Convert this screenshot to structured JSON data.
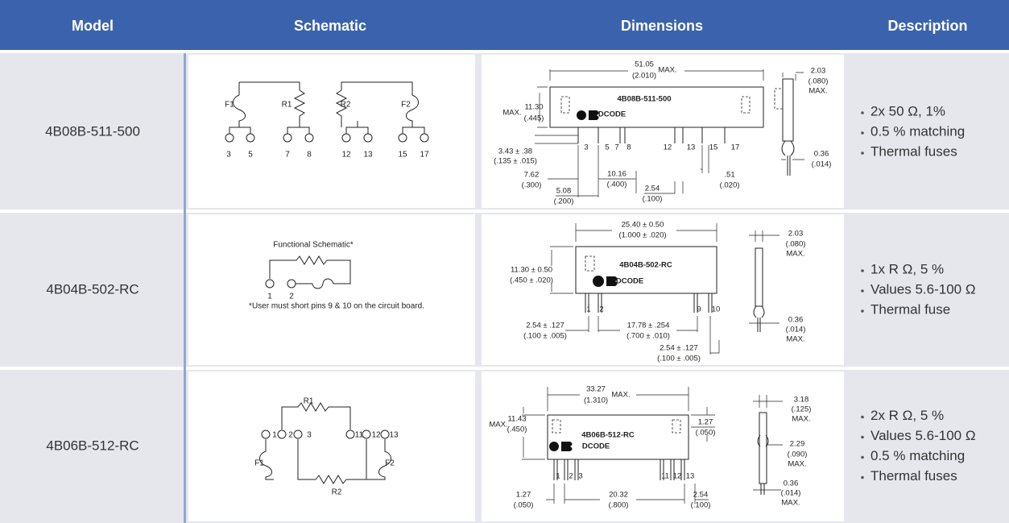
{
  "table": {
    "headers": [
      "Model",
      "Schematic",
      "Dimensions",
      "Description"
    ],
    "rows": [
      {
        "model": "4B08B-511-500",
        "schematic": {
          "labels": [
            "F1",
            "R1",
            "R2",
            "F2",
            "3",
            "5",
            "7",
            "8",
            "12",
            "13",
            "15",
            "17"
          ]
        },
        "dimensions": {
          "labels": [
            "51.05",
            "(2.010)",
            "MAX.",
            "MAX.",
            "11.30",
            "(.445)",
            "4B08B-511-500",
            "DCODE",
            "3",
            "5",
            "7",
            "8",
            "12",
            "13",
            "15",
            "17",
            "3.43 ± .38",
            "(.135 ± .015)",
            "7.62",
            "(.300)",
            "5.08",
            "(.200)",
            "10.16",
            "(.400)",
            "2.54",
            "(.100)",
            ".51",
            "(.020)",
            "2.03",
            "(.080)",
            "MAX.",
            "0.36",
            "(.014)"
          ]
        },
        "description": [
          "2x 50 Ω, 1%",
          "0.5 % matching",
          "Thermal fuses"
        ]
      },
      {
        "model": "4B04B-502-RC",
        "schematic": {
          "labels": [
            "Functional Schematic*",
            "1",
            "2",
            "*User must short pins 9 & 10 on the circuit board."
          ]
        },
        "dimensions": {
          "labels": [
            "25.40 ± 0.50",
            "(1.000 ± .020)",
            "11.30 ± 0.50",
            "(.450 ± .020)",
            "4B04B-502-RC",
            "DCODE",
            "1",
            "2",
            "9",
            "10",
            "2.54 ± .127",
            "(.100 ± .005)",
            "17.78 ± .254",
            "(.700 ± .010)",
            "2.54 ± .127",
            "(.100 ± .005)",
            "2.03",
            "(.080)",
            "MAX.",
            "0.36",
            "(.014)",
            "MAX."
          ]
        },
        "description": [
          "1x R Ω, 5 %",
          "Values 5.6-100 Ω",
          "Thermal fuse"
        ]
      },
      {
        "model": "4B06B-512-RC",
        "schematic": {
          "labels": [
            "R1",
            "1",
            "2",
            "3",
            "11",
            "12",
            "13",
            "F1",
            "F2",
            "R2"
          ]
        },
        "dimensions": {
          "labels": [
            "33.27",
            "(1.310)",
            "MAX.",
            "MAX.",
            "11.43",
            "(.450)",
            "4B06B-512-RC",
            "DCODE",
            "1",
            "2",
            "3",
            "11",
            "12",
            "13",
            "1.27",
            "(.050)",
            "1.27",
            "(.050)",
            "20.32",
            "(.800)",
            "2.54",
            "(.100)",
            "3.18",
            "(.125)",
            "MAX.",
            "2.29",
            "(.090)",
            "MAX.",
            "0.36",
            "(.014)",
            "MAX."
          ]
        },
        "description": [
          "2x R Ω, 5 %",
          "Values 5.6-100 Ω",
          "0.5 % matching",
          "Thermal fuses"
        ]
      }
    ]
  }
}
